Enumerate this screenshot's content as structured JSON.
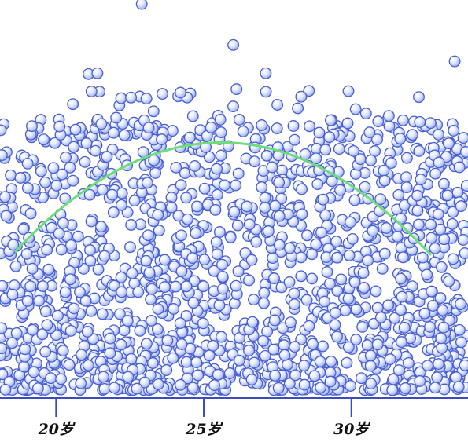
{
  "chart_data": {
    "type": "scatter",
    "title": "",
    "xlabel": "",
    "ylabel": "",
    "x_ticks": [
      {
        "value": 20,
        "label": "20岁"
      },
      {
        "value": 25,
        "label": "25岁"
      },
      {
        "value": 30,
        "label": "30岁"
      }
    ],
    "xlim": [
      18.1,
      33.95
    ],
    "ylim": [
      0,
      1
    ],
    "grid": false,
    "legend": "none",
    "colors": {
      "axis": "#3b4cc0",
      "point_fill": "#dbe3ff",
      "point_stroke": "#4a5fd0",
      "trend": "#6fdc7a"
    },
    "point_count": 1600,
    "trend_curve": {
      "type": "quadratic",
      "x_range": [
        18.6,
        32.7
      ],
      "peak_x": 25.6,
      "peak_y": 0.642,
      "y_at_ends": 0.367
    },
    "outliers": [
      {
        "x": 22.9,
        "y": 0.99
      },
      {
        "x": 26.0,
        "y": 0.887
      },
      {
        "x": 21.1,
        "y": 0.814
      },
      {
        "x": 21.4,
        "y": 0.816
      },
      {
        "x": 27.1,
        "y": 0.816
      },
      {
        "x": 33.5,
        "y": 0.846
      },
      {
        "x": 29.9,
        "y": 0.771
      },
      {
        "x": 28.3,
        "y": 0.757
      }
    ]
  }
}
